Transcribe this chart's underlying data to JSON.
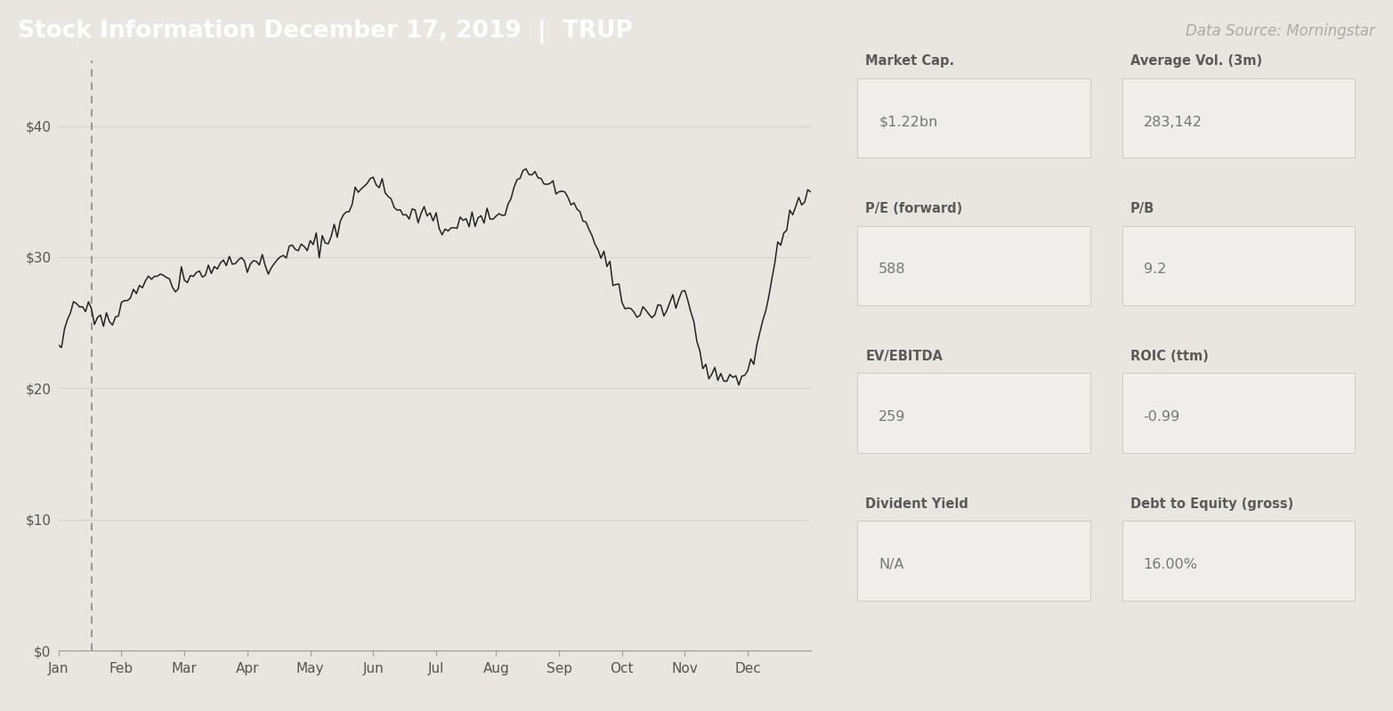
{
  "title_left": "Stock Information December 17, 2019  |  TRUP",
  "title_right": "Data Source: Morningstar",
  "header_bg": "#595f63",
  "header_text_color": "#ffffff",
  "header_right_text_color": "#aaaaaa",
  "chart_bg": "#e9e6e1",
  "line_color": "#222222",
  "dashed_line_color": "#888888",
  "grid_color": "#d5d1cb",
  "axis_text_color": "#555555",
  "ylim": [
    0,
    45
  ],
  "yticks": [
    0,
    10,
    20,
    30,
    40
  ],
  "ytick_labels": [
    "$0",
    "$10",
    "$20",
    "$30",
    "$40"
  ],
  "months": [
    "Jan",
    "Feb",
    "Mar",
    "Apr",
    "May",
    "Jun",
    "Jul",
    "Aug",
    "Sep",
    "Oct",
    "Nov",
    "Dec"
  ],
  "info_labels": [
    "Market Cap.",
    "Average Vol. (3m)",
    "P/E (forward)",
    "P/B",
    "EV/EBITDA",
    "ROIC (ttm)",
    "Divident Yield",
    "Debt to Equity (gross)"
  ],
  "info_values": [
    "$1.22bn",
    "283,142",
    "588",
    "9.2",
    "259",
    "-0.99",
    "N/A",
    "16.00%"
  ],
  "info_box_bg": "#f0eeeb",
  "info_label_color": "#5a5a5a",
  "info_value_color": "#777777",
  "waypoints_x": [
    0,
    6,
    12,
    18,
    25,
    32,
    40,
    48,
    55,
    62,
    70,
    78,
    85,
    92,
    100,
    108,
    115,
    122,
    128,
    135,
    142,
    148,
    155,
    160,
    165,
    170,
    175,
    180,
    185,
    190,
    195,
    200,
    205,
    210,
    215,
    220,
    225,
    230,
    235,
    240,
    245,
    251
  ],
  "waypoints_y": [
    23.2,
    26.5,
    25.5,
    25.2,
    27.5,
    28.5,
    28.0,
    28.8,
    29.5,
    30.0,
    29.0,
    30.5,
    31.0,
    31.5,
    35.0,
    35.8,
    33.0,
    33.5,
    32.0,
    32.8,
    33.2,
    33.0,
    36.5,
    36.0,
    35.5,
    34.5,
    33.0,
    31.0,
    28.5,
    26.0,
    25.5,
    25.8,
    26.5,
    27.2,
    21.5,
    21.0,
    20.5,
    21.0,
    25.0,
    30.5,
    33.5,
    35.2
  ],
  "noise_seed": 17,
  "noise_scale": 0.35,
  "n_points": 252
}
